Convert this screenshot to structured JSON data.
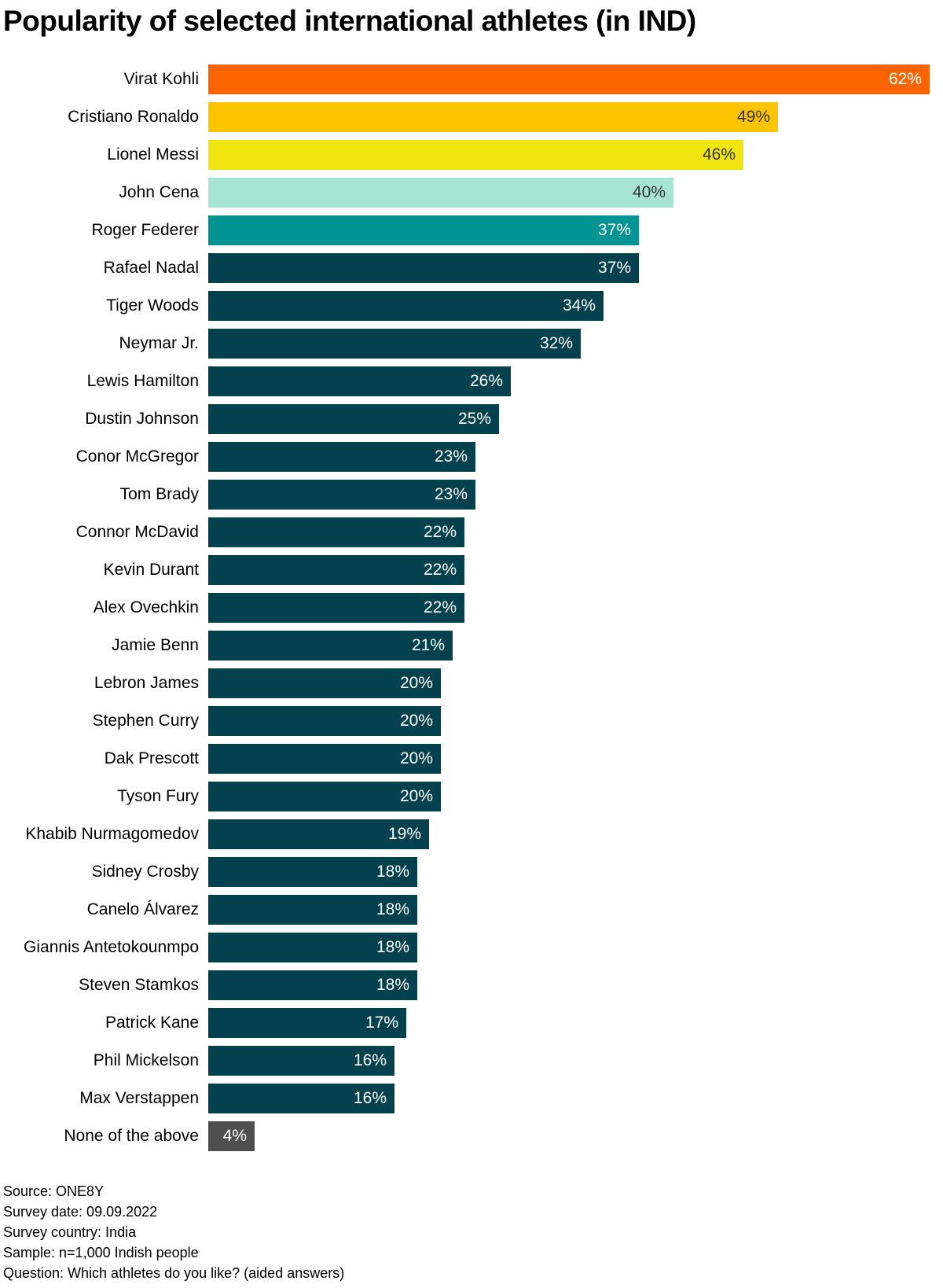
{
  "chart_data": {
    "type": "bar",
    "orientation": "horizontal",
    "title": "Popularity of selected international athletes (in IND)",
    "xlabel": "",
    "ylabel": "",
    "xlim": [
      0,
      62
    ],
    "unit": "%",
    "grid": false,
    "legend": false,
    "background_color": "#ffffff",
    "categories": [
      "Virat Kohli",
      "Cristiano Ronaldo",
      "Lionel Messi",
      "John Cena",
      "Roger Federer",
      "Rafael Nadal",
      "Tiger Woods",
      "Neymar Jr.",
      "Lewis Hamilton",
      "Dustin Johnson",
      "Conor McGregor",
      "Tom Brady",
      "Connor McDavid",
      "Kevin Durant",
      "Alex Ovechkin",
      "Jamie Benn",
      "Lebron James",
      "Stephen Curry",
      "Dak Prescott",
      "Tyson Fury",
      "Khabib Nurmagomedov",
      "Sidney Crosby",
      "Canelo Álvarez",
      "Giannis Antetokounmpo",
      "Steven Stamkos",
      "Patrick Kane",
      "Phil Mickelson",
      "Max Verstappen",
      "None of the above"
    ],
    "values": [
      62,
      49,
      46,
      40,
      37,
      37,
      34,
      32,
      26,
      25,
      23,
      23,
      22,
      22,
      22,
      21,
      20,
      20,
      20,
      20,
      19,
      18,
      18,
      18,
      18,
      17,
      16,
      16,
      4
    ],
    "value_labels": [
      "62%",
      "49%",
      "46%",
      "40%",
      "37%",
      "37%",
      "34%",
      "32%",
      "26%",
      "25%",
      "23%",
      "23%",
      "22%",
      "22%",
      "22%",
      "21%",
      "20%",
      "20%",
      "20%",
      "20%",
      "19%",
      "18%",
      "18%",
      "18%",
      "18%",
      "17%",
      "16%",
      "16%",
      "4%"
    ],
    "bar_colors": [
      "#fb6400",
      "#fdc500",
      "#f0e411",
      "#a8e4d2",
      "#019492",
      "#04414f",
      "#04414f",
      "#04414f",
      "#04414f",
      "#04414f",
      "#04414f",
      "#04414f",
      "#04414f",
      "#04414f",
      "#04414f",
      "#04414f",
      "#04414f",
      "#04414f",
      "#04414f",
      "#04414f",
      "#04414f",
      "#04414f",
      "#04414f",
      "#04414f",
      "#04414f",
      "#04414f",
      "#04414f",
      "#04414f",
      "#4f4f4f"
    ],
    "value_text_colors": [
      "#ffffff",
      "#333333",
      "#333333",
      "#333333",
      "#ffffff",
      "#ffffff",
      "#ffffff",
      "#ffffff",
      "#ffffff",
      "#ffffff",
      "#ffffff",
      "#ffffff",
      "#ffffff",
      "#ffffff",
      "#ffffff",
      "#ffffff",
      "#ffffff",
      "#ffffff",
      "#ffffff",
      "#ffffff",
      "#ffffff",
      "#ffffff",
      "#ffffff",
      "#ffffff",
      "#ffffff",
      "#ffffff",
      "#ffffff",
      "#ffffff",
      "#ffffff"
    ]
  },
  "footer": {
    "lines": [
      "Source: ONE8Y",
      "Survey date: 09.09.2022",
      "Survey country: India",
      "Sample: n=1,000 Indish people",
      "Question: Which athletes do you like? (aided answers)"
    ]
  }
}
